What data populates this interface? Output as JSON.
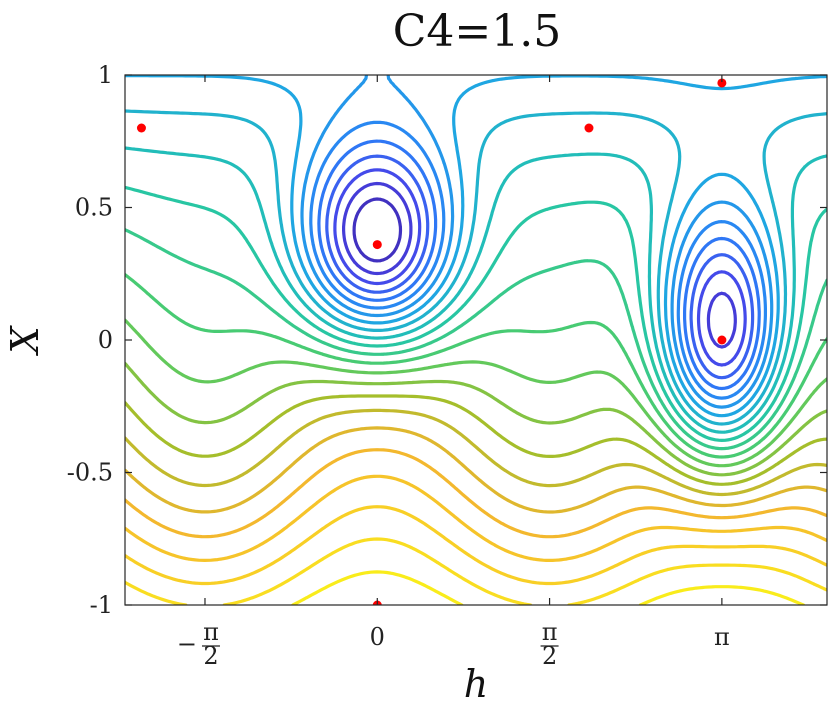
{
  "chart_data": {
    "type": "contour",
    "title": "C4=1.5",
    "xlabel": "h",
    "ylabel": "X",
    "xlim": [
      -2.3,
      4.1
    ],
    "ylim": [
      -1,
      1
    ],
    "xticks": [
      {
        "value": -1.5708,
        "label": "−",
        "num": "π",
        "den": "2"
      },
      {
        "value": 0,
        "label": "0"
      },
      {
        "value": 1.5708,
        "label": "",
        "num": "π",
        "den": "2"
      },
      {
        "value": 3.1416,
        "label": "π"
      }
    ],
    "yticks": [
      {
        "value": 1,
        "label": "1"
      },
      {
        "value": 0.5,
        "label": "0.5"
      },
      {
        "value": 0,
        "label": "0"
      },
      {
        "value": -0.5,
        "label": "-0.5"
      },
      {
        "value": -1,
        "label": "-1"
      }
    ],
    "colormap": [
      "#3e26a8",
      "#4743e8",
      "#2c7ef7",
      "#1fa6e2",
      "#23c5ab",
      "#4dcc6b",
      "#a5be2b",
      "#f2b42f",
      "#f9d325",
      "#f9fb15"
    ],
    "fixed_points": [
      {
        "h": -2.15,
        "X": 0.8
      },
      {
        "h": 0,
        "X": 0.36
      },
      {
        "h": 0,
        "X": -1
      },
      {
        "h": 1.93,
        "X": 0.8
      },
      {
        "h": 3.1416,
        "X": 0.97
      },
      {
        "h": 3.1416,
        "X": 0
      }
    ],
    "point_color": "#ff0000",
    "grid": false,
    "legend": "none"
  }
}
